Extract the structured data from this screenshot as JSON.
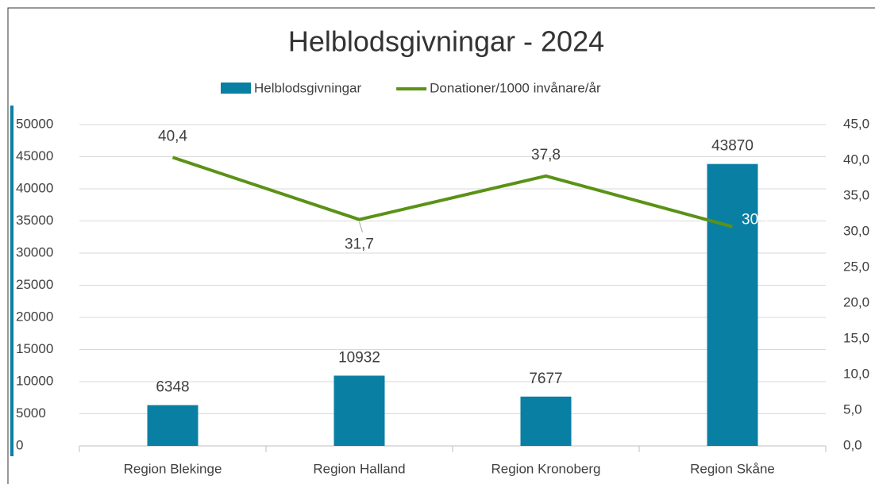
{
  "chart_data": {
    "type": "bar+line",
    "title": "Helblodsgivningar - 2024",
    "categories": [
      "Region Blekinge",
      "Region Halland",
      "Region Kronoberg",
      "Region Skåne"
    ],
    "series": [
      {
        "name": "Helblodsgivningar",
        "type": "bar",
        "color": "#0a7fa4",
        "values": [
          6348,
          10932,
          7677,
          43870
        ]
      },
      {
        "name": "Donationer/1000 invånare/år",
        "type": "line",
        "axis": "y2",
        "color": "#5a9216",
        "values": [
          40.4,
          31.7,
          37.8,
          30.7
        ],
        "value_labels": [
          "40,4",
          "31,7",
          "37,8",
          "30,7"
        ]
      }
    ],
    "ylim": [
      0,
      50000
    ],
    "yticks": [
      0,
      5000,
      10000,
      15000,
      20000,
      25000,
      30000,
      35000,
      40000,
      45000,
      50000
    ],
    "y2lim": [
      0,
      45
    ],
    "y2ticks": [
      {
        "value": 0,
        "label": "0,0"
      },
      {
        "value": 5,
        "label": "5,0"
      },
      {
        "value": 10,
        "label": "10,0"
      },
      {
        "value": 15,
        "label": "15,0"
      },
      {
        "value": 20,
        "label": "20,0"
      },
      {
        "value": 25,
        "label": "25,0"
      },
      {
        "value": 30,
        "label": "30,0"
      },
      {
        "value": 35,
        "label": "35,0"
      },
      {
        "value": 40,
        "label": "40,0"
      },
      {
        "value": 45,
        "label": "45,0"
      }
    ],
    "grid": true,
    "legend": "top"
  }
}
